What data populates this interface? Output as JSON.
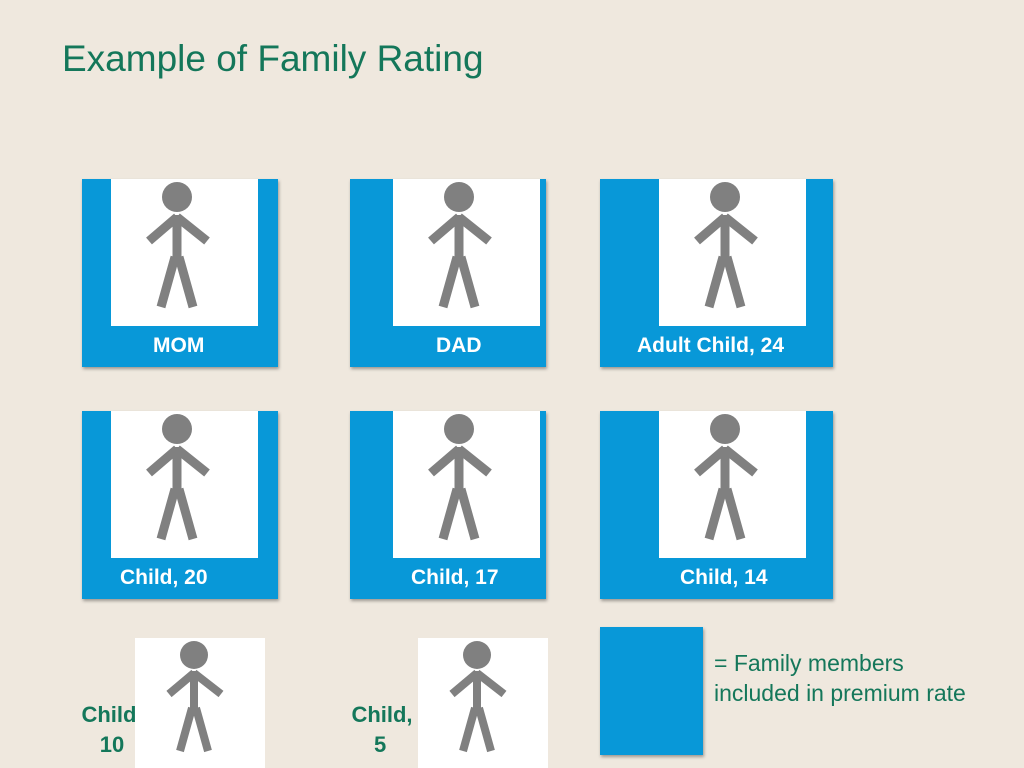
{
  "title": "Example of Family Rating",
  "cards": [
    {
      "label": "MOM"
    },
    {
      "label": "DAD"
    },
    {
      "label": "Adult Child, 24"
    },
    {
      "label": "Child, 20"
    },
    {
      "label": "Child, 17"
    },
    {
      "label": "Child, 14"
    }
  ],
  "uncovered": [
    {
      "label_line1": "Child,",
      "label_line2": "10"
    },
    {
      "label_line1": "Child,",
      "label_line2": "5"
    }
  ],
  "legend": {
    "text": "= Family members included in premium rate"
  },
  "colors": {
    "card_blue": "#0898d8",
    "title_green": "#14775a",
    "figure_gray": "#808080",
    "background": "#efe8de"
  },
  "icons": [
    "person-icon"
  ]
}
